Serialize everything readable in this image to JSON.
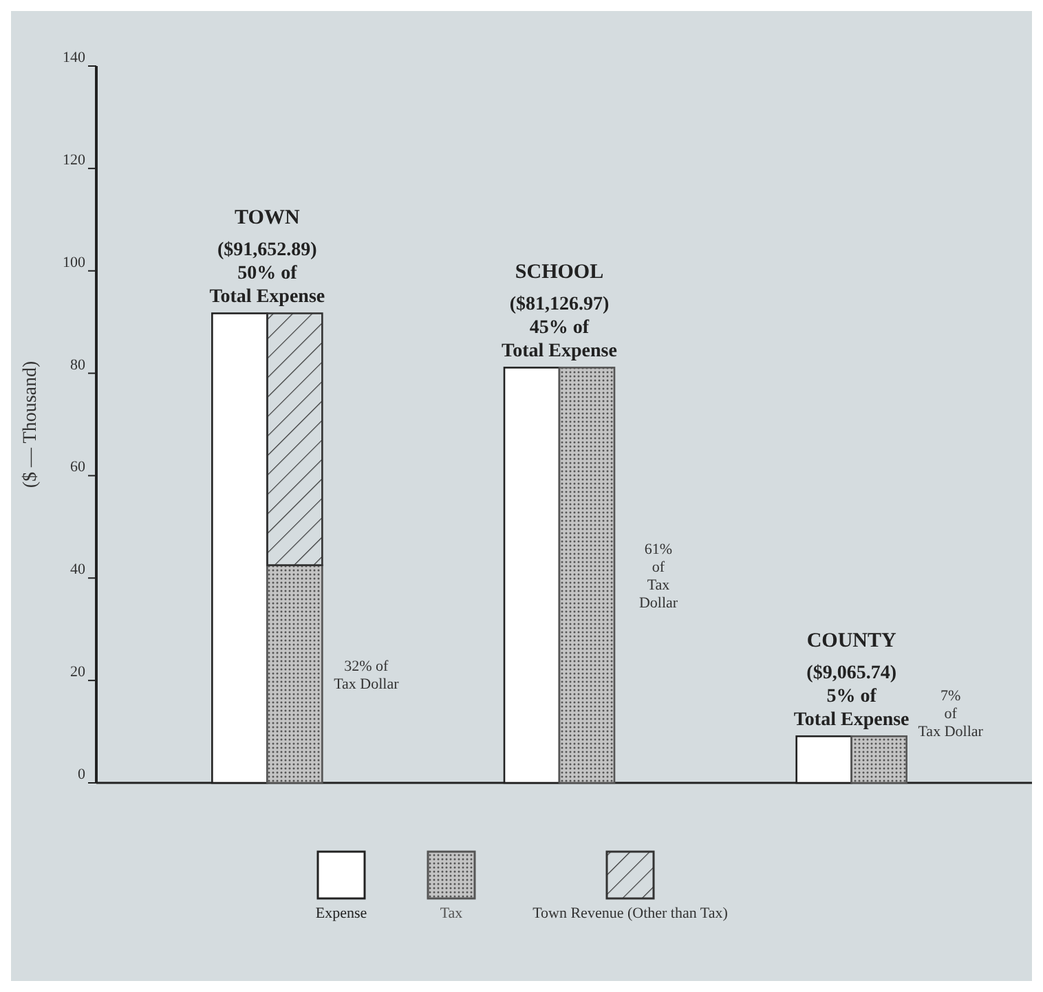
{
  "chart_data": {
    "type": "bar",
    "ylabel": "($ — Thousand)",
    "categories": [
      "TOWN",
      "SCHOOL",
      "COUNTY"
    ],
    "series": [
      {
        "name": "Expense",
        "color": "#ffffff",
        "values": [
          91.7,
          81.1,
          9.1
        ]
      },
      {
        "name": "Tax",
        "color": "#555555",
        "values": [
          42.5,
          81.1,
          9.1
        ]
      },
      {
        "name": "Town Revenue (Other than Tax)",
        "color": "#333333",
        "values": [
          49.2,
          null,
          null
        ],
        "base": [
          42.5,
          null,
          null
        ]
      }
    ],
    "ylim": [
      0,
      140
    ],
    "yticks": [
      0,
      20,
      40,
      60,
      80,
      100,
      120,
      140
    ],
    "legend": "bottom",
    "annotations": [
      {
        "text": "($91,652.89)\n50% of\nTotal Expense",
        "x": "TOWN",
        "y": 91.7
      },
      {
        "text": "($81,126.97)\n45% of\nTotal Expense",
        "x": "SCHOOL",
        "y": 81.1
      },
      {
        "text": "($9,065.74)\n5% of\nTotal Expense",
        "x": "COUNTY",
        "y": 9.1
      },
      "32% of\nTax Dollar",
      "61%\nof\nTax\nDollar",
      "7%\nof\nTax Dollar"
    ]
  }
}
